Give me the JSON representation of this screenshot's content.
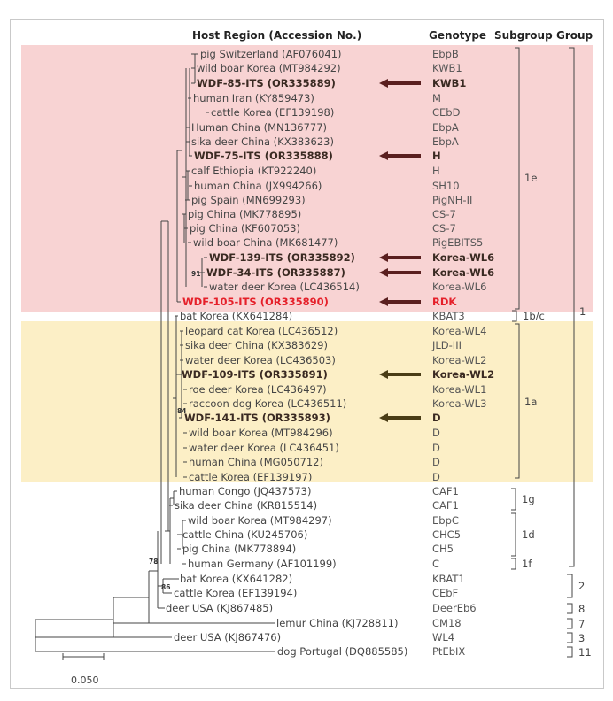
{
  "headers": {
    "host": "Host Region (Accession No.)",
    "genotype": "Genotype",
    "subgroup": "Subgroup",
    "group": "Group"
  },
  "colors": {
    "pink_band": "#f8d3d3",
    "yellow_band": "#fcefc6",
    "highlight_red": "#e5202a",
    "arrow_red": "#5a1f1f",
    "arrow_olive": "#4a3d16"
  },
  "tips": [
    {
      "label": "pig Switzerland (AF076041)",
      "genotype": "EbpB",
      "style": ""
    },
    {
      "label": "wild boar Korea (MT984292)",
      "genotype": "KWB1",
      "style": ""
    },
    {
      "label": "WDF-85-ITS (OR335889)",
      "genotype": "KWB1",
      "style": "hl",
      "arrow": "red"
    },
    {
      "label": "human Iran (KY859473)",
      "genotype": "M",
      "style": ""
    },
    {
      "label": "cattle Korea (EF139198)",
      "genotype": "CEbD",
      "style": ""
    },
    {
      "label": "Human China (MN136777)",
      "genotype": "EbpA",
      "style": ""
    },
    {
      "label": "sika deer China (KX383623)",
      "genotype": "EbpA",
      "style": ""
    },
    {
      "label": "WDF-75-ITS (OR335888)",
      "genotype": "H",
      "style": "hl",
      "arrow": "red"
    },
    {
      "label": "calf Ethiopia (KT922240)",
      "genotype": "H",
      "style": ""
    },
    {
      "label": "human China (JX994266)",
      "genotype": "SH10",
      "style": ""
    },
    {
      "label": "pig Spain (MN699293)",
      "genotype": "PigNH-II",
      "style": ""
    },
    {
      "label": "pig China (MK778895)",
      "genotype": "CS-7",
      "style": ""
    },
    {
      "label": "pig China (KF607053)",
      "genotype": "CS-7",
      "style": ""
    },
    {
      "label": "wild boar China (MK681477)",
      "genotype": "PigEBITS5",
      "style": ""
    },
    {
      "label": "WDF-139-ITS (OR335892)",
      "genotype": "Korea-WL6",
      "style": "hl",
      "arrow": "red"
    },
    {
      "label": "WDF-34-ITS (OR335887)",
      "genotype": "Korea-WL6",
      "style": "hl",
      "arrow": "red"
    },
    {
      "label": "water deer Korea (LC436514)",
      "genotype": "Korea-WL6",
      "style": ""
    },
    {
      "label": "WDF-105-ITS (OR335890)",
      "genotype": "RDK",
      "style": "red",
      "arrow": "red"
    },
    {
      "label": "bat Korea (KX641284)",
      "genotype": "KBAT3",
      "style": ""
    },
    {
      "label": "leopard cat Korea (LC436512)",
      "genotype": "Korea-WL4",
      "style": ""
    },
    {
      "label": "sika deer China (KX383629)",
      "genotype": "JLD-III",
      "style": ""
    },
    {
      "label": "water deer Korea (LC436503)",
      "genotype": "Korea-WL2",
      "style": ""
    },
    {
      "label": "WDF-109-ITS (OR335891)",
      "genotype": "Korea-WL2",
      "style": "hl",
      "arrow": "olive"
    },
    {
      "label": "roe deer Korea (LC436497)",
      "genotype": "Korea-WL1",
      "style": ""
    },
    {
      "label": "raccoon dog Korea (LC436511)",
      "genotype": "Korea-WL3",
      "style": ""
    },
    {
      "label": "WDF-141-ITS (OR335893)",
      "genotype": "D",
      "style": "hl",
      "arrow": "olive"
    },
    {
      "label": "wild boar Korea (MT984296)",
      "genotype": "D",
      "style": ""
    },
    {
      "label": "water deer Korea (LC436451)",
      "genotype": "D",
      "style": ""
    },
    {
      "label": "human China (MG050712)",
      "genotype": "D",
      "style": ""
    },
    {
      "label": "cattle Korea (EF139197)",
      "genotype": "D",
      "style": ""
    },
    {
      "label": "human Congo (JQ437573)",
      "genotype": "CAF1",
      "style": ""
    },
    {
      "label": "sika deer China (KR815514)",
      "genotype": "CAF1",
      "style": ""
    },
    {
      "label": "wild boar Korea (MT984297)",
      "genotype": "EbpC",
      "style": ""
    },
    {
      "label": "cattle China (KU245706)",
      "genotype": "CHC5",
      "style": ""
    },
    {
      "label": "pig China (MK778894)",
      "genotype": "CH5",
      "style": ""
    },
    {
      "label": "human Germany (AF101199)",
      "genotype": "C",
      "style": ""
    },
    {
      "label": "bat Korea (KX641282)",
      "genotype": "KBAT1",
      "style": ""
    },
    {
      "label": "cattle Korea (EF139194)",
      "genotype": "CEbF",
      "style": ""
    },
    {
      "label": "deer USA (KJ867485)",
      "genotype": "DeerEb6",
      "style": ""
    },
    {
      "label": "lemur China (KJ728811)",
      "genotype": "CM18",
      "style": ""
    },
    {
      "label": "deer USA (KJ867476)",
      "genotype": "WL4",
      "style": ""
    },
    {
      "label": "dog Portugal (DQ885585)",
      "genotype": "PtEbIX",
      "style": ""
    }
  ],
  "subgroups": [
    {
      "label": "1e"
    },
    {
      "label": "1b/c"
    },
    {
      "label": "1a"
    },
    {
      "label": "1g"
    },
    {
      "label": "1d"
    },
    {
      "label": "1f"
    }
  ],
  "groups": [
    {
      "label": "1"
    },
    {
      "label": "2"
    },
    {
      "label": "8"
    },
    {
      "label": "7"
    },
    {
      "label": "3"
    },
    {
      "label": "11"
    }
  ],
  "bootstrap": [
    {
      "label": "91"
    },
    {
      "label": "84"
    },
    {
      "label": "78"
    },
    {
      "label": "86"
    }
  ],
  "scale": {
    "label": "0.050"
  }
}
